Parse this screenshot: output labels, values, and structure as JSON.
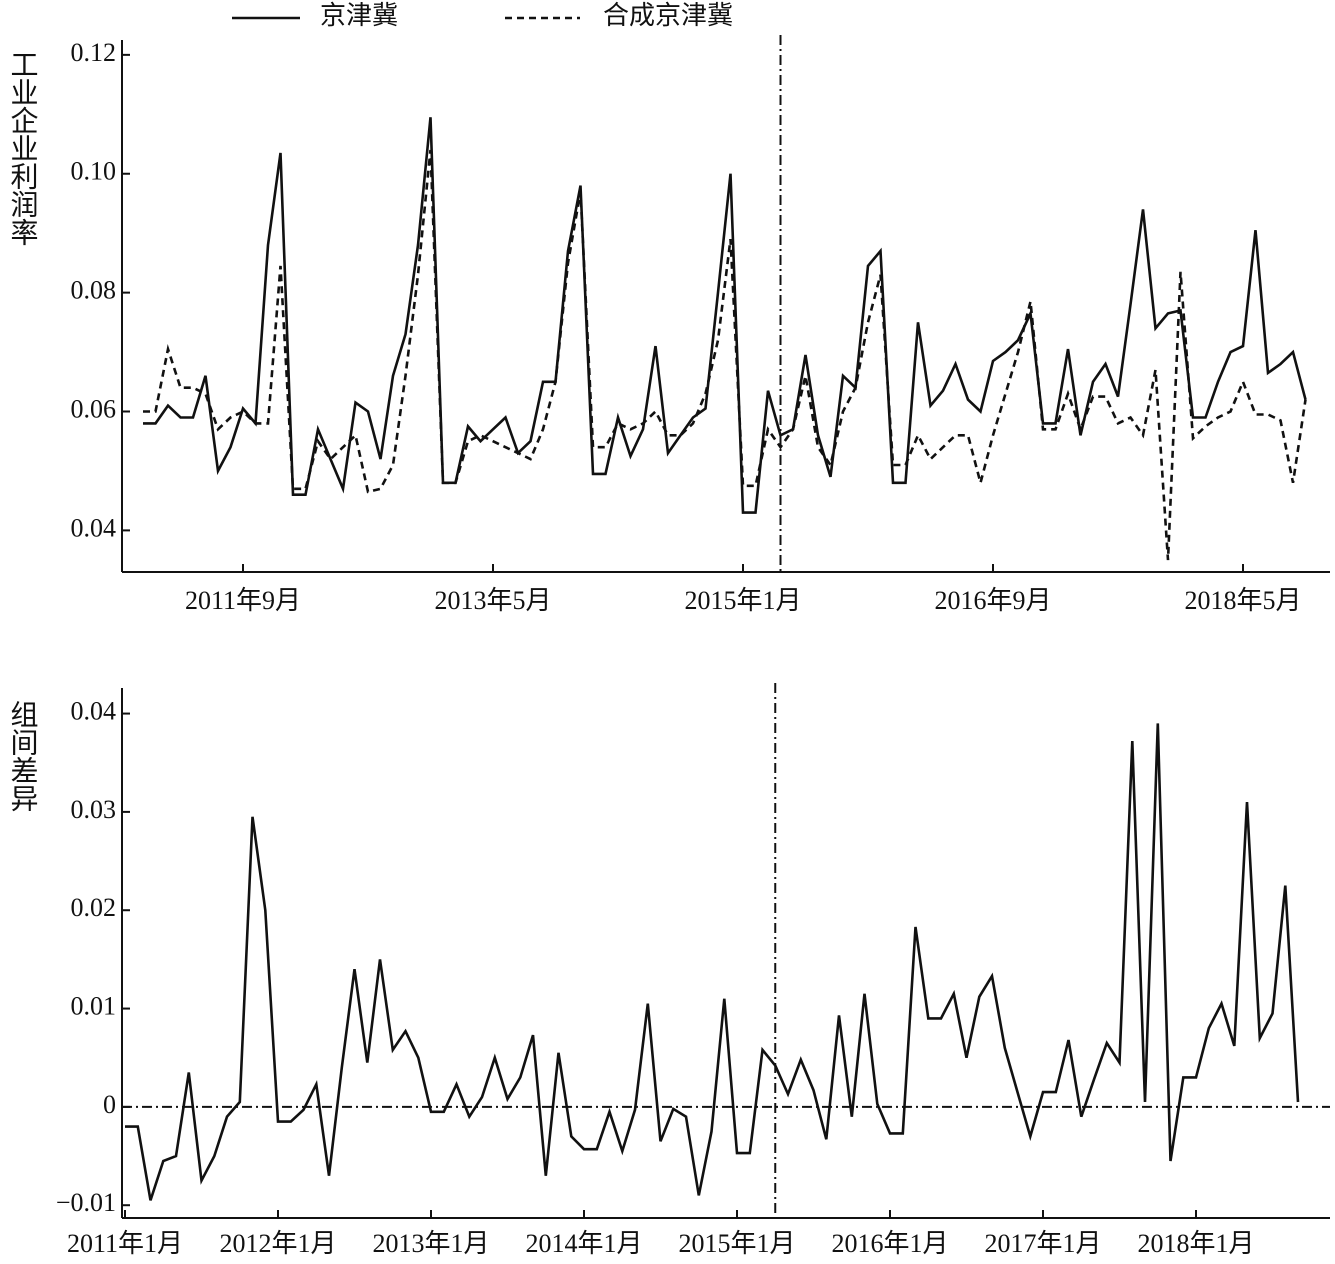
{
  "chart_data": [
    {
      "type": "line",
      "y_label": "工业企业利润率",
      "categories": [
        "2011年1月",
        "2011年2月",
        "2011年3月",
        "2011年4月",
        "2011年5月",
        "2011年6月",
        "2011年7月",
        "2011年8月",
        "2011年9月",
        "2011年10月",
        "2011年11月",
        "2011年12月",
        "2012年1月",
        "2012年2月",
        "2012年3月",
        "2012年4月",
        "2012年5月",
        "2012年6月",
        "2012年7月",
        "2012年8月",
        "2012年9月",
        "2012年10月",
        "2012年11月",
        "2012年12月",
        "2013年1月",
        "2013年2月",
        "2013年3月",
        "2013年4月",
        "2013年5月",
        "2013年6月",
        "2013年7月",
        "2013年8月",
        "2013年9月",
        "2013年10月",
        "2013年11月",
        "2013年12月",
        "2014年1月",
        "2014年2月",
        "2014年3月",
        "2014年4月",
        "2014年5月",
        "2014年6月",
        "2014年7月",
        "2014年8月",
        "2014年9月",
        "2014年10月",
        "2014年11月",
        "2014年12月",
        "2015年1月",
        "2015年2月",
        "2015年3月",
        "2015年4月",
        "2015年5月",
        "2015年6月",
        "2015年7月",
        "2015年8月",
        "2015年9月",
        "2015年10月",
        "2015年11月",
        "2015年12月",
        "2016年1月",
        "2016年2月",
        "2016年3月",
        "2016年4月",
        "2016年5月",
        "2016年6月",
        "2016年7月",
        "2016年8月",
        "2016年9月",
        "2016年10月",
        "2016年11月",
        "2016年12月",
        "2017年1月",
        "2017年2月",
        "2017年3月",
        "2017年4月",
        "2017年5月",
        "2017年6月",
        "2017年7月",
        "2017年8月",
        "2017年9月",
        "2017年10月",
        "2017年11月",
        "2017年12月",
        "2018年1月",
        "2018年2月",
        "2018年3月",
        "2018年4月",
        "2018年5月",
        "2018年6月",
        "2018年7月",
        "2018年8月",
        "2018年9月",
        "2018年10月"
      ],
      "series": [
        {
          "name": "京津冀",
          "color": "#111111",
          "dashed": false,
          "values": [
            0.058,
            0.058,
            0.061,
            0.059,
            0.059,
            0.066,
            0.05,
            0.054,
            0.0605,
            0.058,
            0.088,
            0.1035,
            0.046,
            0.046,
            0.057,
            0.052,
            0.047,
            0.0615,
            0.06,
            0.052,
            0.066,
            0.073,
            0.088,
            0.1095,
            0.048,
            0.048,
            0.0575,
            0.055,
            0.057,
            0.059,
            0.053,
            0.055,
            0.065,
            0.065,
            0.087,
            0.098,
            0.0495,
            0.0495,
            0.059,
            0.0525,
            0.057,
            0.071,
            0.053,
            0.056,
            0.059,
            0.0605,
            0.08,
            0.1,
            0.043,
            0.043,
            0.0635,
            0.056,
            0.057,
            0.0695,
            0.056,
            0.049,
            0.066,
            0.064,
            0.0845,
            0.087,
            0.048,
            0.048,
            0.075,
            0.061,
            0.0635,
            0.068,
            0.062,
            0.06,
            0.0685,
            0.07,
            0.072,
            0.0765,
            0.058,
            0.058,
            0.0705,
            0.056,
            0.065,
            0.068,
            0.0625,
            0.078,
            0.094,
            0.074,
            0.0765,
            0.077,
            0.059,
            0.059,
            0.065,
            0.07,
            0.071,
            0.0905,
            0.0665,
            0.068,
            0.07,
            0.062
          ]
        },
        {
          "name": "合成京津冀",
          "color": "#111111",
          "dashed": true,
          "values": [
            0.06,
            0.06,
            0.0705,
            0.064,
            0.064,
            0.063,
            0.057,
            0.059,
            0.06,
            0.058,
            0.058,
            0.0845,
            0.047,
            0.047,
            0.055,
            0.052,
            0.054,
            0.056,
            0.0465,
            0.047,
            0.051,
            0.066,
            0.083,
            0.104,
            0.048,
            0.048,
            0.055,
            0.056,
            0.055,
            0.054,
            0.053,
            0.052,
            0.057,
            0.065,
            0.085,
            0.097,
            0.054,
            0.054,
            0.058,
            0.057,
            0.058,
            0.06,
            0.056,
            0.056,
            0.058,
            0.063,
            0.072,
            0.089,
            0.0475,
            0.0475,
            0.057,
            0.054,
            0.057,
            0.066,
            0.054,
            0.051,
            0.06,
            0.064,
            0.075,
            0.083,
            0.051,
            0.051,
            0.056,
            0.052,
            0.054,
            0.056,
            0.056,
            0.048,
            0.056,
            0.063,
            0.07,
            0.0785,
            0.057,
            0.057,
            0.063,
            0.057,
            0.0625,
            0.0625,
            0.058,
            0.059,
            0.056,
            0.067,
            0.035,
            0.0835,
            0.0555,
            0.0575,
            0.059,
            0.06,
            0.065,
            0.0595,
            0.0595,
            0.0585,
            0.048,
            0.062
          ]
        }
      ],
      "ylim": [
        0.033,
        0.1225
      ],
      "yticks": [
        0.04,
        0.06,
        0.08,
        {
          "value": 0.1,
          "label": "0.10"
        },
        0.12
      ],
      "xticks": [
        "2011年9月",
        "2013年5月",
        "2015年1月",
        "2016年9月",
        "2018年5月"
      ],
      "vline": "2015年4月",
      "legend": "top"
    },
    {
      "type": "line",
      "y_label": "组间差异",
      "categories": [
        "2011年1月",
        "2011年2月",
        "2011年3月",
        "2011年4月",
        "2011年5月",
        "2011年6月",
        "2011年7月",
        "2011年8月",
        "2011年9月",
        "2011年10月",
        "2011年11月",
        "2011年12月",
        "2012年1月",
        "2012年2月",
        "2012年3月",
        "2012年4月",
        "2012年5月",
        "2012年6月",
        "2012年7月",
        "2012年8月",
        "2012年9月",
        "2012年10月",
        "2012年11月",
        "2012年12月",
        "2013年1月",
        "2013年2月",
        "2013年3月",
        "2013年4月",
        "2013年5月",
        "2013年6月",
        "2013年7月",
        "2013年8月",
        "2013年9月",
        "2013年10月",
        "2013年11月",
        "2013年12月",
        "2014年1月",
        "2014年2月",
        "2014年3月",
        "2014年4月",
        "2014年5月",
        "2014年6月",
        "2014年7月",
        "2014年8月",
        "2014年9月",
        "2014年10月",
        "2014年11月",
        "2014年12月",
        "2015年1月",
        "2015年2月",
        "2015年3月",
        "2015年4月",
        "2015年5月",
        "2015年6月",
        "2015年7月",
        "2015年8月",
        "2015年9月",
        "2015年10月",
        "2015年11月",
        "2015年12月",
        "2016年1月",
        "2016年2月",
        "2016年3月",
        "2016年4月",
        "2016年5月",
        "2016年6月",
        "2016年7月",
        "2016年8月",
        "2016年9月",
        "2016年10月",
        "2016年11月",
        "2016年12月",
        "2017年1月",
        "2017年2月",
        "2017年3月",
        "2017年4月",
        "2017年5月",
        "2017年6月",
        "2017年7月",
        "2017年8月",
        "2017年9月",
        "2017年10月",
        "2017年11月",
        "2017年12月",
        "2018年1月",
        "2018年2月",
        "2018年3月",
        "2018年4月",
        "2018年5月",
        "2018年6月",
        "2018年7月",
        "2018年8月",
        "2018年9月"
      ],
      "series": [
        {
          "color": "#111111",
          "dashed": false,
          "values": [
            -0.002,
            -0.002,
            -0.0095,
            -0.0055,
            -0.005,
            0.0035,
            -0.0075,
            -0.005,
            -0.001,
            0.0005,
            0.0295,
            0.02,
            -0.0015,
            -0.0015,
            -0.0003,
            0.0023,
            -0.007,
            0.004,
            0.014,
            0.0045,
            0.015,
            0.0058,
            0.0077,
            0.005,
            -0.0005,
            -0.0005,
            0.0023,
            -0.001,
            0.001,
            0.005,
            0.0008,
            0.003,
            0.0073,
            -0.007,
            0.0055,
            -0.003,
            -0.0043,
            -0.0043,
            -0.0005,
            -0.0045,
            -0.0003,
            0.0105,
            -0.0035,
            -0.0002,
            -0.001,
            -0.009,
            -0.0025,
            0.011,
            -0.0047,
            -0.0047,
            0.0058,
            0.0042,
            0.0013,
            0.0048,
            0.0017,
            -0.0033,
            0.0093,
            -0.001,
            0.0115,
            0.0003,
            -0.0027,
            -0.0027,
            0.0183,
            0.009,
            0.009,
            0.0115,
            0.005,
            0.0112,
            0.0133,
            0.006,
            0.0015,
            -0.003,
            0.0015,
            0.0015,
            0.0068,
            -0.001,
            0.0028,
            0.0065,
            0.0045,
            0.0372,
            0.0005,
            0.039,
            -0.0055,
            0.003,
            0.003,
            0.008,
            0.0105,
            0.0062,
            0.031,
            0.007,
            0.0095,
            0.0225,
            0.0005
          ]
        }
      ],
      "ylim": [
        -0.0113,
        0.0426
      ],
      "yticks": [
        {
          "value": -0.01,
          "label": "−0.01"
        },
        0,
        0.01,
        0.02,
        0.03,
        0.04
      ],
      "xticks": [
        "2011年1月",
        "2012年1月",
        "2013年1月",
        "2014年1月",
        "2015年1月",
        "2016年1月",
        "2017年1月",
        "2018年1月"
      ],
      "vline": "2015年4月",
      "hline": 0
    }
  ]
}
